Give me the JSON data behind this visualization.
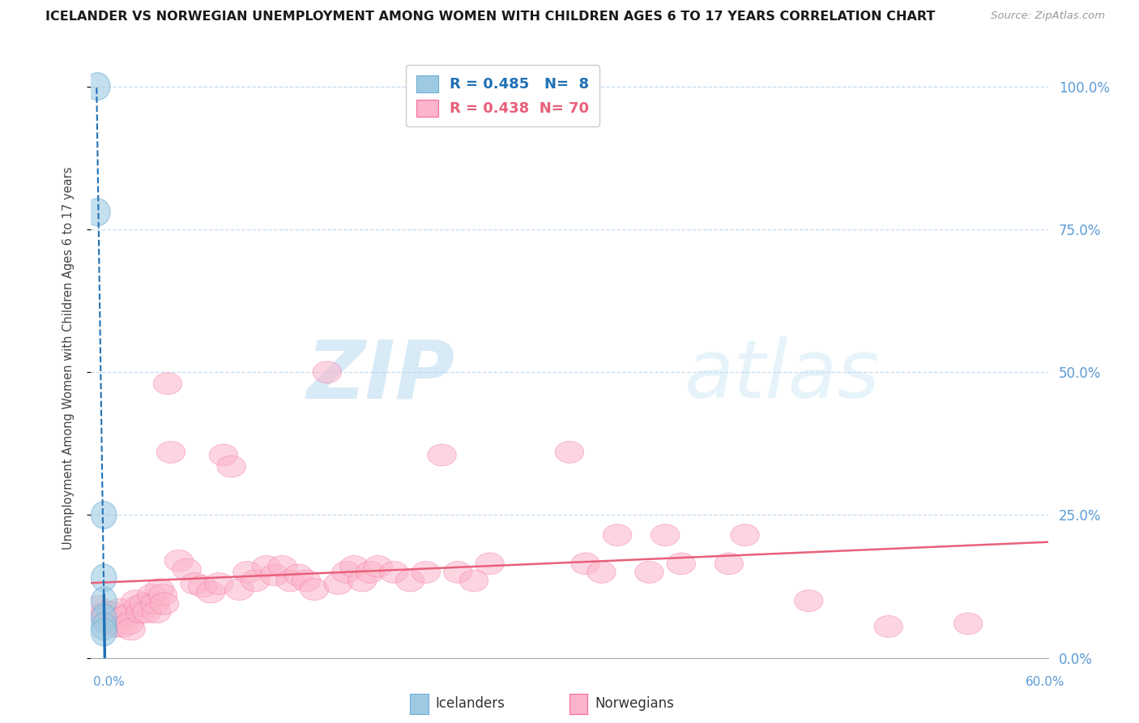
{
  "title": "ICELANDER VS NORWEGIAN UNEMPLOYMENT AMONG WOMEN WITH CHILDREN AGES 6 TO 17 YEARS CORRELATION CHART",
  "source": "Source: ZipAtlas.com",
  "ylabel": "Unemployment Among Women with Children Ages 6 to 17 years",
  "xlim": [
    0.0,
    0.6
  ],
  "ylim": [
    0.0,
    1.05
  ],
  "yticks": [
    0.0,
    0.25,
    0.5,
    0.75,
    1.0
  ],
  "ytick_labels_right": [
    "0.0%",
    "25.0%",
    "50.0%",
    "75.0%",
    "100.0%"
  ],
  "iceland_R": 0.485,
  "iceland_N": 8,
  "norway_R": 0.438,
  "norway_N": 70,
  "iceland_color": "#9ecae1",
  "iceland_edge_color": "#6baed6",
  "norway_color": "#fbb4c9",
  "norway_edge_color": "#f768a1",
  "iceland_line_color": "#2171b5",
  "norway_line_color": "#e8607a",
  "grid_color": "#c6dbef",
  "watermark_color": "#d6eaf8",
  "iceland_points_x": [
    0.004,
    0.004,
    0.008,
    0.008,
    0.008,
    0.008,
    0.008,
    0.008
  ],
  "iceland_points_y": [
    1.0,
    0.78,
    0.25,
    0.14,
    0.1,
    0.07,
    0.055,
    0.045
  ],
  "norway_points_x": [
    0.004,
    0.009,
    0.009,
    0.01,
    0.013,
    0.014,
    0.015,
    0.018,
    0.019,
    0.02,
    0.023,
    0.024,
    0.025,
    0.028,
    0.03,
    0.031,
    0.033,
    0.035,
    0.038,
    0.04,
    0.041,
    0.043,
    0.045,
    0.046,
    0.048,
    0.05,
    0.055,
    0.06,
    0.065,
    0.07,
    0.075,
    0.08,
    0.083,
    0.088,
    0.093,
    0.098,
    0.103,
    0.11,
    0.115,
    0.12,
    0.125,
    0.13,
    0.135,
    0.14,
    0.148,
    0.155,
    0.16,
    0.165,
    0.17,
    0.175,
    0.18,
    0.19,
    0.2,
    0.21,
    0.22,
    0.23,
    0.24,
    0.25,
    0.3,
    0.31,
    0.32,
    0.33,
    0.35,
    0.36,
    0.37,
    0.4,
    0.41,
    0.45,
    0.5,
    0.55
  ],
  "norway_points_y": [
    0.09,
    0.08,
    0.07,
    0.06,
    0.08,
    0.065,
    0.055,
    0.085,
    0.07,
    0.055,
    0.075,
    0.06,
    0.05,
    0.1,
    0.09,
    0.08,
    0.095,
    0.08,
    0.11,
    0.095,
    0.08,
    0.12,
    0.11,
    0.095,
    0.48,
    0.36,
    0.17,
    0.155,
    0.13,
    0.125,
    0.115,
    0.13,
    0.355,
    0.335,
    0.12,
    0.15,
    0.135,
    0.16,
    0.145,
    0.16,
    0.135,
    0.145,
    0.135,
    0.12,
    0.5,
    0.13,
    0.15,
    0.16,
    0.135,
    0.15,
    0.16,
    0.15,
    0.135,
    0.15,
    0.355,
    0.15,
    0.135,
    0.165,
    0.36,
    0.165,
    0.15,
    0.215,
    0.15,
    0.215,
    0.165,
    0.165,
    0.215,
    0.1,
    0.055,
    0.06
  ]
}
